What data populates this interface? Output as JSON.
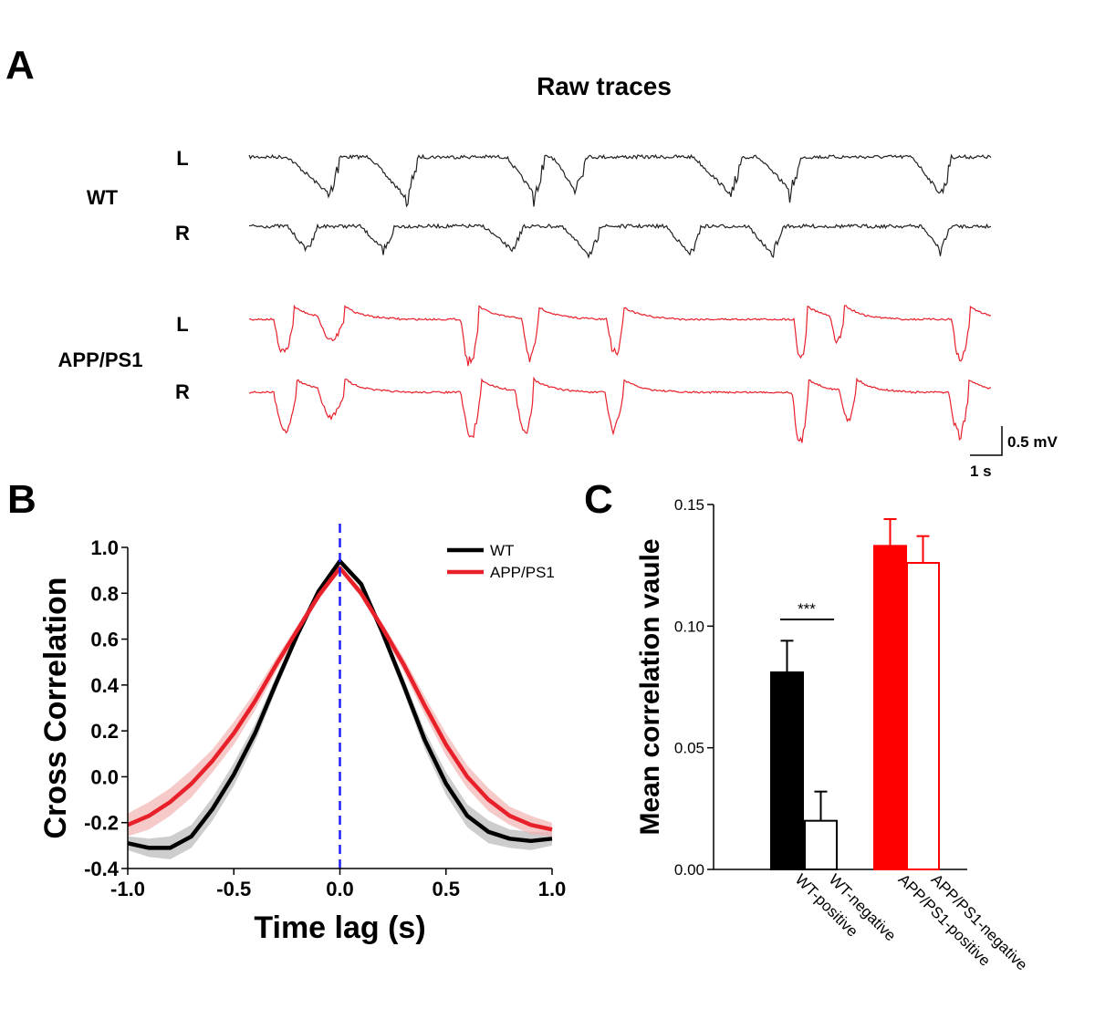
{
  "panels": {
    "a": {
      "letter": "A",
      "title": "Raw traces",
      "groups": [
        {
          "name": "WT",
          "channels": [
            "L",
            "R"
          ],
          "color": "#231f20"
        },
        {
          "name": "APP/PS1",
          "channels": [
            "L",
            "R"
          ],
          "color": "#e8202a"
        }
      ],
      "scalebar": {
        "voltage": "0.5 mV",
        "time": "1 s"
      }
    },
    "b": {
      "letter": "B"
    },
    "c": {
      "letter": "C"
    }
  },
  "chart_data": [
    {
      "type": "line",
      "panel": "B",
      "xlabel": "Time lag (s)",
      "ylabel": "Cross Correlation",
      "xlim": [
        -1.0,
        1.0
      ],
      "ylim": [
        -0.4,
        1.0
      ],
      "xticks": [
        "-1.0",
        "-0.5",
        "0.0",
        "0.5",
        "1.0"
      ],
      "yticks": [
        "-0.4",
        "-0.2",
        "0.0",
        "0.2",
        "0.4",
        "0.6",
        "0.8",
        "1.0"
      ],
      "legend_position": "top-right",
      "reference_line": {
        "x": 0.0,
        "color": "#1f1fff",
        "style": "dashed"
      },
      "series": [
        {
          "name": "WT",
          "color": "#000000",
          "band_color": "#b8b8b8",
          "x": [
            -1.0,
            -0.9,
            -0.8,
            -0.7,
            -0.6,
            -0.5,
            -0.4,
            -0.3,
            -0.2,
            -0.1,
            0.0,
            0.1,
            0.2,
            0.3,
            0.4,
            0.5,
            0.6,
            0.7,
            0.8,
            0.9,
            1.0
          ],
          "y": [
            -0.29,
            -0.31,
            -0.31,
            -0.26,
            -0.14,
            0.01,
            0.19,
            0.41,
            0.62,
            0.81,
            0.94,
            0.84,
            0.63,
            0.4,
            0.16,
            -0.03,
            -0.17,
            -0.24,
            -0.27,
            -0.28,
            -0.27
          ],
          "band": [
            0.03,
            0.04,
            0.05,
            0.05,
            0.05,
            0.05,
            0.04,
            0.03,
            0.02,
            0.015,
            0.01,
            0.015,
            0.02,
            0.03,
            0.04,
            0.05,
            0.05,
            0.05,
            0.04,
            0.04,
            0.03
          ]
        },
        {
          "name": "APP/PS1",
          "color": "#e8202a",
          "band_color": "#f4b3b3",
          "x": [
            -1.0,
            -0.9,
            -0.8,
            -0.7,
            -0.6,
            -0.5,
            -0.4,
            -0.3,
            -0.2,
            -0.1,
            0.0,
            0.1,
            0.2,
            0.3,
            0.4,
            0.5,
            0.6,
            0.7,
            0.8,
            0.9,
            1.0
          ],
          "y": [
            -0.21,
            -0.17,
            -0.11,
            -0.03,
            0.07,
            0.19,
            0.33,
            0.49,
            0.64,
            0.79,
            0.91,
            0.8,
            0.65,
            0.49,
            0.31,
            0.14,
            0.0,
            -0.1,
            -0.17,
            -0.21,
            -0.23
          ],
          "band": [
            0.05,
            0.06,
            0.06,
            0.06,
            0.05,
            0.05,
            0.04,
            0.03,
            0.02,
            0.02,
            0.01,
            0.02,
            0.02,
            0.03,
            0.04,
            0.05,
            0.05,
            0.05,
            0.04,
            0.04,
            0.03
          ]
        }
      ]
    },
    {
      "type": "bar",
      "panel": "C",
      "ylabel": "Mean correlation vaule",
      "ylim": [
        0.0,
        0.15
      ],
      "yticks": [
        "0.00",
        "0.05",
        "0.10",
        "0.15"
      ],
      "categories": [
        "WT-positive",
        "WT-negative",
        "APP/PS1-positive",
        "APP/PS1-negative"
      ],
      "values": [
        0.081,
        0.02,
        0.133,
        0.126
      ],
      "errors": [
        0.013,
        0.012,
        0.011,
        0.011
      ],
      "colors": [
        "#000000",
        "#000000",
        "#ff0000",
        "#ff0000"
      ],
      "filled": [
        true,
        false,
        true,
        false
      ],
      "significance": {
        "between": [
          "WT-positive",
          "WT-negative"
        ],
        "label": "***"
      }
    }
  ]
}
